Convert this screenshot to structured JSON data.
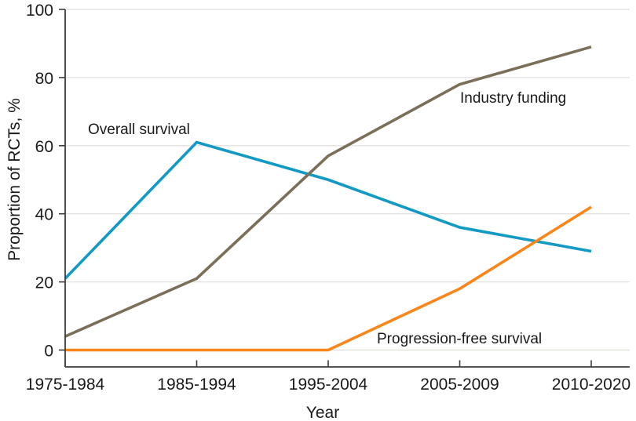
{
  "chart_data": {
    "type": "line",
    "title": "",
    "xlabel": "Year",
    "ylabel": "Proportion of RCTs, %",
    "categories": [
      "1975-1984",
      "1985-1994",
      "1995-2004",
      "2005-2009",
      "2010-2020"
    ],
    "yticks": [
      0,
      20,
      40,
      60,
      80,
      100
    ],
    "ylim": [
      0,
      100
    ],
    "grid": "horizontal",
    "legend_position": "inline-annotations",
    "series": [
      {
        "name": "Overall survival",
        "color": "#1299C4",
        "values": [
          21,
          61,
          50,
          36,
          29
        ]
      },
      {
        "name": "Industry funding",
        "color": "#7B6F5A",
        "values": [
          4,
          21,
          57,
          78,
          89
        ]
      },
      {
        "name": "Progression-free survival",
        "color": "#F8861B",
        "values": [
          0,
          0,
          0,
          18,
          42
        ]
      }
    ],
    "colors": {
      "axis": "#3C3C3C",
      "grid": "#E4E2DF",
      "text": "#1A1A1A",
      "background": "#FFFFFF"
    }
  }
}
